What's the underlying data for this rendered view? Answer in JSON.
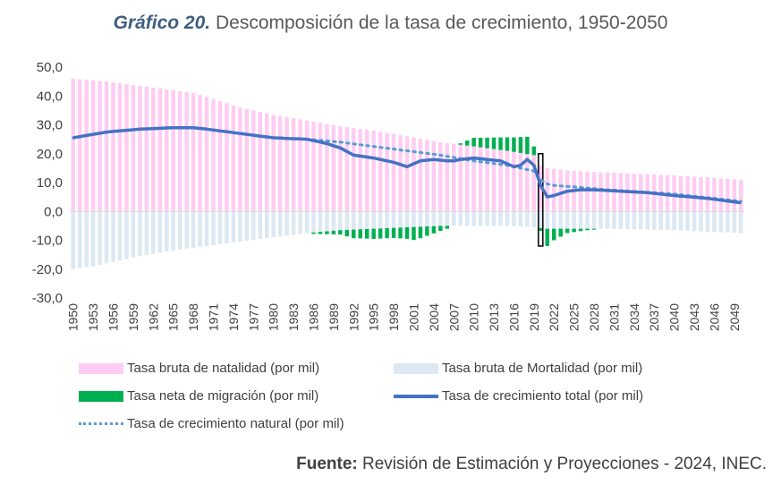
{
  "title": {
    "lead": "Gráfico 20.",
    "text": "Descomposición de la tasa de crecimiento, 1950-2050"
  },
  "source": {
    "label": "Fuente:",
    "text": "Revisión de Estimación y Proyecciones - 2024, INEC."
  },
  "colors": {
    "natalidad": "#ffccf2",
    "mortalidad": "#dce8f2",
    "migracion": "#00b050",
    "total": "#4472c4",
    "natural": "#5b9bd5"
  },
  "legend": {
    "natalidad": "Tasa bruta de natalidad (por mil)",
    "mortalidad": "Tasa bruta de Mortalidad (por mil)",
    "migracion": "Tasa neta de migración (por mil)",
    "total": "Tasa de crecimiento total (por mil)",
    "natural": "Tasa de crecimiento natural (por mil)"
  },
  "chart_data": {
    "type": "bar",
    "title": "Descomposición de la tasa de crecimiento, 1950-2050",
    "xlabel": "",
    "ylabel": "",
    "ylim": [
      -30,
      50
    ],
    "yticks": [
      "50,0",
      "40,0",
      "30,0",
      "20,0",
      "10,0",
      "0,0",
      "-10,0",
      "-20,0",
      "-30,0"
    ],
    "x_tick_labels": [
      "1950",
      "1953",
      "1956",
      "1959",
      "1962",
      "1965",
      "1968",
      "1971",
      "1974",
      "1977",
      "1980",
      "1983",
      "1986",
      "1989",
      "1992",
      "1995",
      "1998",
      "2001",
      "2004",
      "2007",
      "2010",
      "2013",
      "2016",
      "2019",
      "2022",
      "2025",
      "2028",
      "2031",
      "2034",
      "2037",
      "2040",
      "2043",
      "2046",
      "2049"
    ],
    "legend_position": "bottom",
    "grid": false,
    "annotations": [
      "highlight box around year 2020"
    ],
    "series_keypoints": {
      "natalidad": [
        [
          1950,
          46
        ],
        [
          1955,
          45
        ],
        [
          1960,
          43.5
        ],
        [
          1965,
          42
        ],
        [
          1968,
          41
        ],
        [
          1971,
          39
        ],
        [
          1975,
          36
        ],
        [
          1980,
          33.5
        ],
        [
          1985,
          31.5
        ],
        [
          1990,
          29.5
        ],
        [
          1995,
          28
        ],
        [
          2000,
          26
        ],
        [
          2005,
          24
        ],
        [
          2010,
          22.5
        ],
        [
          2015,
          21
        ],
        [
          2019,
          19.5
        ],
        [
          2020,
          16
        ],
        [
          2021,
          15
        ],
        [
          2025,
          14
        ],
        [
          2030,
          13.5
        ],
        [
          2040,
          12.5
        ],
        [
          2050,
          11
        ]
      ],
      "mortalidad": [
        [
          1950,
          -20
        ],
        [
          1953,
          -19
        ],
        [
          1956,
          -17.5
        ],
        [
          1960,
          -15.5
        ],
        [
          1965,
          -13.5
        ],
        [
          1970,
          -12
        ],
        [
          1975,
          -10.5
        ],
        [
          1980,
          -9
        ],
        [
          1985,
          -7.5
        ],
        [
          1990,
          -6.5
        ],
        [
          1995,
          -6
        ],
        [
          2000,
          -5.5
        ],
        [
          2005,
          -5
        ],
        [
          2010,
          -5
        ],
        [
          2015,
          -5
        ],
        [
          2019,
          -5.5
        ],
        [
          2021,
          -6
        ],
        [
          2025,
          -6
        ],
        [
          2030,
          -6
        ],
        [
          2040,
          -6.5
        ],
        [
          2050,
          -7.5
        ]
      ],
      "migracion": [
        [
          1950,
          0
        ],
        [
          1985,
          0
        ],
        [
          1986,
          -0.5
        ],
        [
          1988,
          -1
        ],
        [
          1990,
          -1.5
        ],
        [
          1992,
          -3
        ],
        [
          1995,
          -3.5
        ],
        [
          1998,
          -3.5
        ],
        [
          2000,
          -4
        ],
        [
          2001,
          -4.5
        ],
        [
          2002,
          -4
        ],
        [
          2004,
          -2.5
        ],
        [
          2006,
          -1
        ],
        [
          2008,
          0.5
        ],
        [
          2010,
          3
        ],
        [
          2013,
          4
        ],
        [
          2016,
          5
        ],
        [
          2018,
          6
        ],
        [
          2019,
          3
        ],
        [
          2020,
          -1
        ],
        [
          2021,
          -6
        ],
        [
          2022,
          -4
        ],
        [
          2024,
          -1.5
        ],
        [
          2027,
          -0.5
        ],
        [
          2030,
          0
        ],
        [
          2050,
          0
        ]
      ],
      "total": [
        [
          1950,
          25.5
        ],
        [
          1955,
          27.5
        ],
        [
          1960,
          28.5
        ],
        [
          1965,
          29
        ],
        [
          1968,
          29
        ],
        [
          1970,
          28.5
        ],
        [
          1975,
          27
        ],
        [
          1980,
          25.5
        ],
        [
          1985,
          25
        ],
        [
          1988,
          23.5
        ],
        [
          1990,
          22
        ],
        [
          1992,
          19.5
        ],
        [
          1995,
          18.5
        ],
        [
          1998,
          17
        ],
        [
          2000,
          15.5
        ],
        [
          2001,
          16.5
        ],
        [
          2002,
          17.5
        ],
        [
          2004,
          18
        ],
        [
          2006,
          17.5
        ],
        [
          2007,
          17.5
        ],
        [
          2008,
          18
        ],
        [
          2010,
          18.5
        ],
        [
          2012,
          18
        ],
        [
          2014,
          17.5
        ],
        [
          2016,
          15.5
        ],
        [
          2017,
          16
        ],
        [
          2018,
          18
        ],
        [
          2019,
          16
        ],
        [
          2020,
          9
        ],
        [
          2021,
          5
        ],
        [
          2022,
          5.5
        ],
        [
          2024,
          7
        ],
        [
          2026,
          7.5
        ],
        [
          2028,
          7.5
        ],
        [
          2032,
          7
        ],
        [
          2036,
          6.5
        ],
        [
          2040,
          5.5
        ],
        [
          2045,
          4.5
        ],
        [
          2050,
          3
        ]
      ],
      "natural": [
        [
          1950,
          25.5
        ],
        [
          1955,
          27.5
        ],
        [
          1960,
          28.5
        ],
        [
          1965,
          29
        ],
        [
          1968,
          29
        ],
        [
          1970,
          28.5
        ],
        [
          1975,
          27
        ],
        [
          1980,
          25.5
        ],
        [
          1985,
          25
        ],
        [
          1990,
          24
        ],
        [
          1995,
          22.5
        ],
        [
          2000,
          21
        ],
        [
          2005,
          19.5
        ],
        [
          2010,
          17.5
        ],
        [
          2015,
          16
        ],
        [
          2019,
          14
        ],
        [
          2020,
          11
        ],
        [
          2021,
          9.5
        ],
        [
          2022,
          9
        ],
        [
          2025,
          8.5
        ],
        [
          2030,
          7.5
        ],
        [
          2040,
          6
        ],
        [
          2050,
          3.5
        ]
      ]
    },
    "highlight_year": 2020
  }
}
